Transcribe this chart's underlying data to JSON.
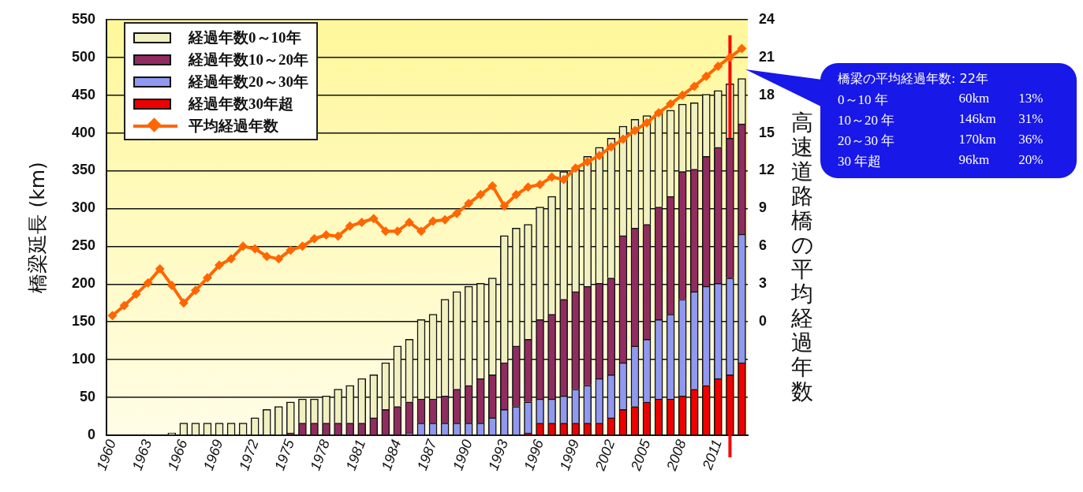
{
  "chart_data": {
    "type": "bar",
    "stacked": true,
    "ylabel": "橋梁延長 (km)",
    "y2label": "高速道路橋の平均経過年数",
    "x": [
      1960,
      1961,
      1962,
      1963,
      1964,
      1965,
      1966,
      1967,
      1968,
      1969,
      1970,
      1971,
      1972,
      1973,
      1974,
      1975,
      1976,
      1977,
      1978,
      1979,
      1980,
      1981,
      1982,
      1983,
      1984,
      1985,
      1986,
      1987,
      1988,
      1989,
      1990,
      1991,
      1992,
      1993,
      1994,
      1995,
      1996,
      1997,
      1998,
      1999,
      2000,
      2001,
      2002,
      2003,
      2004,
      2005,
      2006,
      2007,
      2008,
      2009,
      2010,
      2011,
      2012,
      2013
    ],
    "xlim": [
      1959.5,
      2013.5
    ],
    "xticks": [
      1960,
      1963,
      1966,
      1969,
      1972,
      1975,
      1978,
      1981,
      1984,
      1987,
      1990,
      1993,
      1996,
      1999,
      2002,
      2005,
      2008,
      2011
    ],
    "ylim": [
      0,
      550
    ],
    "yticks": [
      0,
      50,
      100,
      150,
      200,
      250,
      300,
      350,
      400,
      450,
      500,
      550
    ],
    "y2lim": [
      -9,
      24
    ],
    "y2ticks": [
      0,
      3,
      6,
      9,
      12,
      15,
      18,
      21,
      24
    ],
    "grid": "y",
    "legend": "top left",
    "marker": "diamond",
    "series": [
      {
        "name": "経過年数30年超",
        "color": "#ee0000",
        "values": [
          0,
          0,
          0,
          0,
          0,
          0,
          0,
          0,
          0,
          0,
          0,
          0,
          0,
          0,
          0,
          0,
          0,
          0,
          0,
          0,
          0,
          0,
          0,
          0,
          0,
          0,
          0,
          0,
          0,
          0,
          0,
          0,
          0,
          0,
          0,
          3,
          16,
          16,
          16,
          16,
          16,
          16,
          23,
          34,
          38,
          44,
          48,
          48,
          52,
          61,
          66,
          75,
          80,
          96
        ]
      },
      {
        "name": "経過年数20～30年",
        "color": "#9098f0",
        "values": [
          0,
          0,
          0,
          0,
          0,
          0,
          0,
          0,
          0,
          0,
          0,
          0,
          0,
          0,
          0,
          0,
          0,
          0,
          0,
          0,
          0,
          0,
          0,
          0,
          0,
          3,
          16,
          16,
          16,
          16,
          16,
          16,
          23,
          34,
          38,
          41,
          32,
          32,
          36,
          45,
          50,
          59,
          57,
          62,
          80,
          83,
          105,
          112,
          128,
          129,
          131,
          126,
          128,
          170
        ]
      },
      {
        "name": "経過年数10～20年",
        "color": "#902c60",
        "values": [
          0,
          0,
          0,
          0,
          0,
          0,
          0,
          0,
          0,
          0,
          0,
          0,
          0,
          0,
          0,
          3,
          16,
          16,
          16,
          16,
          16,
          16,
          23,
          34,
          38,
          41,
          32,
          32,
          36,
          45,
          50,
          59,
          57,
          62,
          80,
          83,
          105,
          112,
          128,
          129,
          131,
          126,
          128,
          168,
          156,
          152,
          149,
          156,
          169,
          162,
          172,
          180,
          185,
          146
        ]
      },
      {
        "name": "経過年数0～10年",
        "color": "#f0f0c0",
        "values": [
          0,
          0,
          0,
          0,
          0,
          3,
          16,
          16,
          16,
          16,
          16,
          16,
          23,
          34,
          38,
          41,
          32,
          32,
          36,
          45,
          50,
          59,
          57,
          62,
          80,
          83,
          105,
          112,
          128,
          129,
          131,
          126,
          128,
          168,
          156,
          152,
          149,
          156,
          169,
          162,
          172,
          180,
          185,
          145,
          144,
          144,
          126,
          114,
          89,
          88,
          82,
          75,
          72,
          60
        ]
      },
      {
        "name": "平均経過年数",
        "type": "line",
        "axis": "y2",
        "color": "#ff6600",
        "values": [
          0.5,
          1.3,
          2.2,
          3.1,
          4.2,
          2.9,
          1.5,
          2.5,
          3.5,
          4.5,
          5.0,
          6.0,
          5.8,
          5.2,
          5.0,
          5.7,
          6.0,
          6.6,
          6.9,
          6.8,
          7.6,
          7.9,
          8.2,
          7.2,
          7.2,
          7.9,
          7.2,
          8.0,
          8.1,
          8.6,
          9.4,
          10.1,
          10.8,
          9.2,
          10.1,
          10.7,
          10.9,
          11.5,
          11.3,
          12.2,
          12.7,
          13.2,
          13.9,
          14.5,
          15.2,
          15.8,
          16.6,
          17.3,
          18.0,
          18.7,
          19.5,
          20.3,
          21.0,
          21.7
        ]
      }
    ],
    "ref_lines": [
      {
        "axis": "x",
        "value": 2012,
        "color": "#ff0000"
      }
    ],
    "annotations": [
      "橋梁の平均経過年数: 22年",
      "0～10 年",
      "60km",
      "13%",
      "10～20 年",
      "146km",
      "31%",
      "20～30 年",
      "170km",
      "36%",
      "30 年超",
      "96km",
      "20%"
    ]
  }
}
